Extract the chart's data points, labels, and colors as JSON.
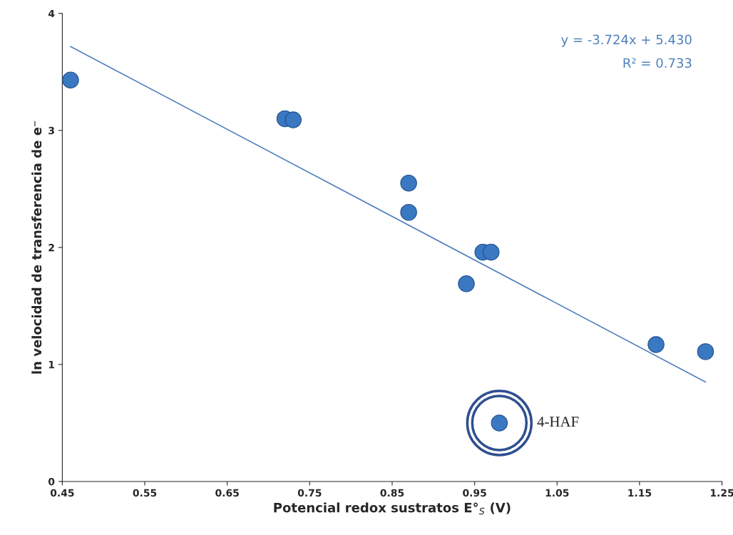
{
  "chart_data": {
    "type": "scatter",
    "xlabel": "Potencial redox sustratos E°$_{S}$ (V)",
    "ylabel": "ln velocidad de transferencia de e⁻",
    "series": [
      {
        "color": "#3a78c2",
        "marker": "circle",
        "x": [
          0.46,
          0.72,
          0.73,
          0.87,
          0.87,
          0.94,
          0.96,
          0.97,
          1.17,
          1.23,
          0.98
        ],
        "values": [
          3.43,
          3.1,
          3.09,
          2.55,
          2.3,
          1.69,
          1.96,
          1.96,
          1.17,
          1.11,
          0.5
        ]
      },
      {
        "type": "line",
        "color": "#4f81bd",
        "x": [
          0.46,
          1.23
        ],
        "values": [
          3.717,
          0.85
        ]
      }
    ],
    "annotations": [
      "y = -3.724x + 5.430",
      "R² = 0.733",
      {
        "text": "4-HAF",
        "x": 0.98,
        "y": 0.5
      }
    ],
    "xlim": [
      0.45,
      1.25
    ],
    "ylim": [
      0,
      4
    ],
    "xticks": [
      0.45,
      0.55,
      0.65,
      0.75,
      0.85,
      0.95,
      1.05,
      1.15,
      1.25
    ],
    "yticks": [
      0,
      1,
      2,
      3,
      4
    ],
    "grid": false,
    "legend": false
  }
}
